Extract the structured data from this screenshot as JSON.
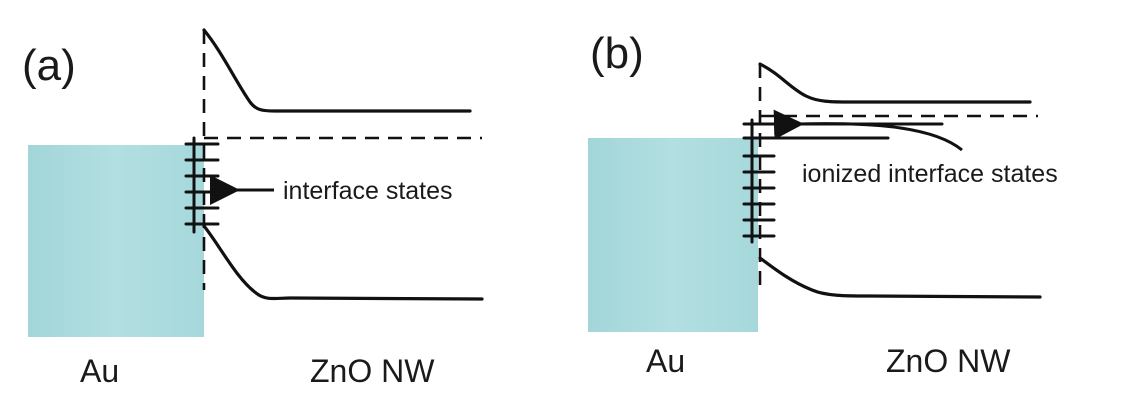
{
  "panels": [
    {
      "tag": "(a)",
      "metal_label": "Au",
      "semiconductor_label": "ZnO NW",
      "annotation": "interface states"
    },
    {
      "tag": "(b)",
      "metal_label": "Au",
      "semiconductor_label": "ZnO NW",
      "annotation": "ionized interface states"
    }
  ],
  "colors": {
    "metal_fill": "#a9d9dc",
    "line": "#111111"
  }
}
